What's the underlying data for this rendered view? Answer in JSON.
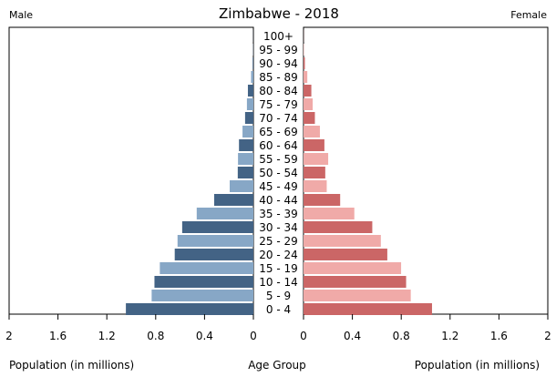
{
  "chart_data": {
    "type": "bar",
    "title": "Zimbabwe - 2018",
    "left_label": "Male",
    "right_label": "Female",
    "xlabel_left": "Population (in millions)",
    "xlabel_center": "Age Group",
    "xlabel_right": "Population (in millions)",
    "xlim": [
      0,
      2
    ],
    "ticks": [
      "2",
      "1.6",
      "1.2",
      "0.8",
      "0.4",
      "0"
    ],
    "ticks_right": [
      "0",
      "0.4",
      "0.8",
      "1.2",
      "1.6",
      "2"
    ],
    "tick_values": [
      2,
      1.6,
      1.2,
      0.8,
      0.4,
      0
    ],
    "tick_values_right": [
      0,
      0.4,
      0.8,
      1.2,
      1.6,
      2
    ],
    "categories": [
      "100+",
      "95 - 99",
      "90 - 94",
      "85 - 89",
      "80 - 84",
      "75 - 79",
      "70 - 74",
      "65 - 69",
      "60 - 64",
      "55 - 59",
      "50 - 54",
      "45 - 49",
      "40 - 44",
      "35 - 39",
      "30 - 34",
      "25 - 29",
      "20 - 24",
      "15 - 19",
      "10 - 14",
      "5 - 9",
      "0 - 4"
    ],
    "series": [
      {
        "name": "Male",
        "values": [
          0.001,
          0.002,
          0.006,
          0.019,
          0.045,
          0.053,
          0.068,
          0.089,
          0.118,
          0.126,
          0.128,
          0.194,
          0.321,
          0.464,
          0.583,
          0.621,
          0.644,
          0.766,
          0.81,
          0.833,
          1.044
        ]
      },
      {
        "name": "Female",
        "values": [
          0.001,
          0.004,
          0.011,
          0.031,
          0.064,
          0.075,
          0.093,
          0.134,
          0.171,
          0.202,
          0.178,
          0.19,
          0.3,
          0.416,
          0.563,
          0.633,
          0.686,
          0.799,
          0.84,
          0.878,
          1.052
        ]
      }
    ],
    "colors": {
      "male_dark": "#436385",
      "male_light": "#87a7c6",
      "female_dark": "#cb6666",
      "female_light": "#f0aaa8"
    }
  }
}
